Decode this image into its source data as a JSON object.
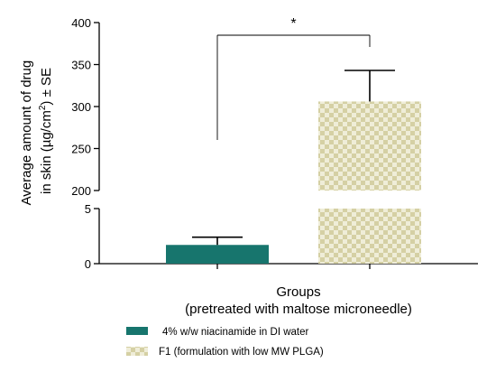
{
  "chart_data": {
    "type": "bar",
    "categories": [
      "4% w/w niacinamide in DI water",
      "F1 (formulation with low MW PLGA)"
    ],
    "values": [
      1.7,
      306
    ],
    "errors": [
      0.7,
      37
    ],
    "xlabel": [
      "Groups",
      "(pretreated with maltose microneedle)"
    ],
    "ylabel": [
      "Average amount of drug",
      "in skin (µg/cm",
      "2",
      ") ± SE"
    ],
    "y_axis_broken": true,
    "y_segments": [
      {
        "range": [
          0,
          5
        ],
        "ticks": [
          0,
          5
        ]
      },
      {
        "range": [
          200,
          400
        ],
        "ticks": [
          200,
          250,
          300,
          350,
          400
        ]
      }
    ],
    "significance": {
      "between": [
        0,
        1
      ],
      "label": "*"
    },
    "legend": {
      "position": "bottom",
      "entries": [
        {
          "label": "4% w/w niacinamide in DI water",
          "fill": "solid",
          "color": "#17756d"
        },
        {
          "label": "F1 (formulation with low MW PLGA)",
          "fill": "checkered",
          "color": "#d7d3a9"
        }
      ]
    },
    "colors": {
      "series1": "#17756d",
      "series2_light": "#efedd8",
      "series2_dark": "#d5d0a4",
      "axis": "#000000"
    }
  }
}
